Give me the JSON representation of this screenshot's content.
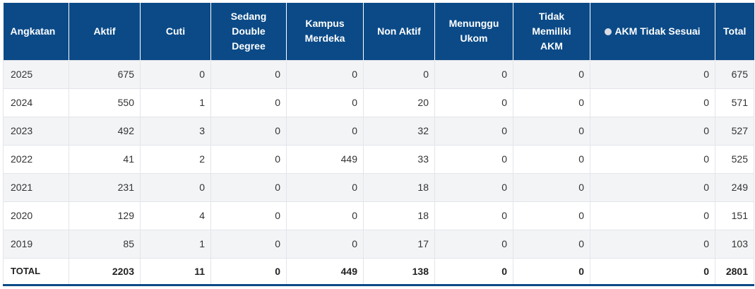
{
  "table": {
    "headers": [
      {
        "key": "angkatan",
        "lines": [
          "Angkatan"
        ]
      },
      {
        "key": "aktif",
        "lines": [
          "Aktif"
        ]
      },
      {
        "key": "cuti",
        "lines": [
          "Cuti"
        ]
      },
      {
        "key": "sedang_double_degree",
        "lines": [
          "Sedang",
          "Double",
          "Degree"
        ]
      },
      {
        "key": "kampus_merdeka",
        "lines": [
          "Kampus",
          "Merdeka"
        ]
      },
      {
        "key": "non_aktif",
        "lines": [
          "Non Aktif"
        ]
      },
      {
        "key": "menunggu_ukom",
        "lines": [
          "Menunggu",
          "Ukom"
        ]
      },
      {
        "key": "tidak_memiliki_akm",
        "lines": [
          "Tidak",
          "Memiliki",
          "AKM"
        ]
      },
      {
        "key": "akm_tidak_sesuai",
        "lines": [
          "AKM Tidak Sesuai"
        ],
        "has_dot": true
      },
      {
        "key": "total",
        "lines": [
          "Total"
        ]
      }
    ],
    "rows": [
      [
        "2025",
        "675",
        "0",
        "0",
        "0",
        "0",
        "0",
        "0",
        "0",
        "675"
      ],
      [
        "2024",
        "550",
        "1",
        "0",
        "0",
        "20",
        "0",
        "0",
        "0",
        "571"
      ],
      [
        "2023",
        "492",
        "3",
        "0",
        "0",
        "32",
        "0",
        "0",
        "0",
        "527"
      ],
      [
        "2022",
        "41",
        "2",
        "0",
        "449",
        "33",
        "0",
        "0",
        "0",
        "525"
      ],
      [
        "2021",
        "231",
        "0",
        "0",
        "0",
        "18",
        "0",
        "0",
        "0",
        "249"
      ],
      [
        "2020",
        "129",
        "4",
        "0",
        "0",
        "18",
        "0",
        "0",
        "0",
        "151"
      ],
      [
        "2019",
        "85",
        "1",
        "0",
        "0",
        "17",
        "0",
        "0",
        "0",
        "103"
      ]
    ],
    "footer": [
      "TOTAL",
      "2203",
      "11",
      "0",
      "449",
      "138",
      "0",
      "0",
      "0",
      "2801"
    ]
  },
  "colors": {
    "header_bg": "#0b4a87",
    "header_text": "#ffffff",
    "row_stripe": "#f3f4f6",
    "footer_border": "#0b4a87",
    "dot": "#d9dde3"
  }
}
